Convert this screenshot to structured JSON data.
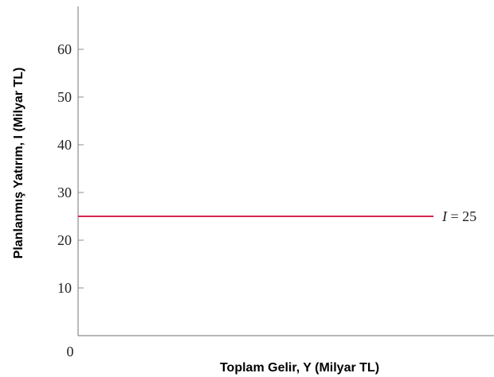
{
  "chart_data": {
    "type": "line",
    "title": "",
    "xlabel": "Toplam Gelir, Y (Milyar TL)",
    "ylabel": "Planlanmış Yatırım, I (Milyar TL)",
    "ylim": [
      0,
      70
    ],
    "yticks": [
      10,
      20,
      30,
      40,
      50,
      60
    ],
    "origin_label": "0",
    "grid": false,
    "series": [
      {
        "values": [
          25,
          25
        ],
        "color": "#d6264f"
      }
    ],
    "annotations": [
      {
        "label_var": "I",
        "label_rest": " = 25",
        "y": 25
      }
    ]
  }
}
